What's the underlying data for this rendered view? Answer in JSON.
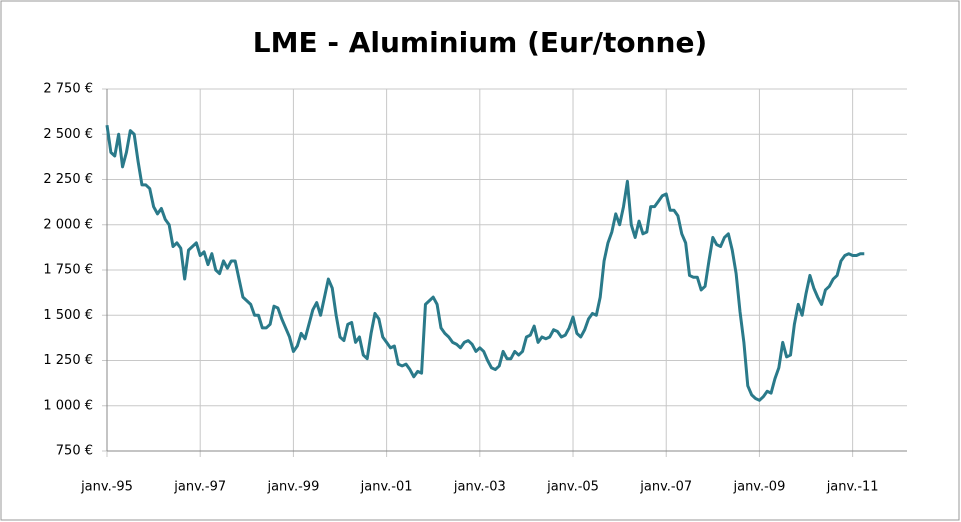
{
  "chart_data": {
    "type": "line",
    "title": "LME - Aluminium (Eur/tonne)",
    "color": "#2a7a8a",
    "grid": true,
    "ylim": [
      750,
      2750
    ],
    "yticks": [
      {
        "value": 750,
        "label": "750 €"
      },
      {
        "value": 1000,
        "label": "1 000 €"
      },
      {
        "value": 1250,
        "label": "1 250 €"
      },
      {
        "value": 1500,
        "label": "1 500 €"
      },
      {
        "value": 1750,
        "label": "1 750 €"
      },
      {
        "value": 2000,
        "label": "2 000 €"
      },
      {
        "value": 2250,
        "label": "2 250 €"
      },
      {
        "value": 2500,
        "label": "2 500 €"
      },
      {
        "value": 2750,
        "label": "2 750 €"
      }
    ],
    "xlim": [
      "1995-01",
      "2012-03"
    ],
    "xticks": [
      {
        "value": "1995-01",
        "label": "janv.-95"
      },
      {
        "value": "1997-01",
        "label": "janv.-97"
      },
      {
        "value": "1999-01",
        "label": "janv.-99"
      },
      {
        "value": "2001-01",
        "label": "janv.-01"
      },
      {
        "value": "2003-01",
        "label": "janv.-03"
      },
      {
        "value": "2005-01",
        "label": "janv.-05"
      },
      {
        "value": "2007-01",
        "label": "janv.-07"
      },
      {
        "value": "2009-01",
        "label": "janv.-09"
      },
      {
        "value": "2011-01",
        "label": "janv.-11"
      }
    ],
    "x": [
      "1995-01",
      "1995-02",
      "1995-03",
      "1995-04",
      "1995-05",
      "1995-06",
      "1995-07",
      "1995-08",
      "1995-09",
      "1995-10",
      "1995-11",
      "1995-12",
      "1996-01",
      "1996-02",
      "1996-03",
      "1996-04",
      "1996-05",
      "1996-06",
      "1996-07",
      "1996-08",
      "1996-09",
      "1996-10",
      "1996-11",
      "1996-12",
      "1997-01",
      "1997-02",
      "1997-03",
      "1997-04",
      "1997-05",
      "1997-06",
      "1997-07",
      "1997-08",
      "1997-09",
      "1997-10",
      "1997-11",
      "1997-12",
      "1998-01",
      "1998-02",
      "1998-03",
      "1998-04",
      "1998-05",
      "1998-06",
      "1998-07",
      "1998-08",
      "1998-09",
      "1998-10",
      "1998-11",
      "1998-12",
      "1999-01",
      "1999-02",
      "1999-03",
      "1999-04",
      "1999-05",
      "1999-06",
      "1999-07",
      "1999-08",
      "1999-09",
      "1999-10",
      "1999-11",
      "1999-12",
      "2000-01",
      "2000-02",
      "2000-03",
      "2000-04",
      "2000-05",
      "2000-06",
      "2000-07",
      "2000-08",
      "2000-09",
      "2000-10",
      "2000-11",
      "2000-12",
      "2001-01",
      "2001-02",
      "2001-03",
      "2001-04",
      "2001-05",
      "2001-06",
      "2001-07",
      "2001-08",
      "2001-09",
      "2001-10",
      "2001-11",
      "2001-12",
      "2002-01",
      "2002-02",
      "2002-03",
      "2002-04",
      "2002-05",
      "2002-06",
      "2002-07",
      "2002-08",
      "2002-09",
      "2002-10",
      "2002-11",
      "2002-12",
      "2003-01",
      "2003-02",
      "2003-03",
      "2003-04",
      "2003-05",
      "2003-06",
      "2003-07",
      "2003-08",
      "2003-09",
      "2003-10",
      "2003-11",
      "2003-12",
      "2004-01",
      "2004-02",
      "2004-03",
      "2004-04",
      "2004-05",
      "2004-06",
      "2004-07",
      "2004-08",
      "2004-09",
      "2004-10",
      "2004-11",
      "2004-12",
      "2005-01",
      "2005-02",
      "2005-03",
      "2005-04",
      "2005-05",
      "2005-06",
      "2005-07",
      "2005-08",
      "2005-09",
      "2005-10",
      "2005-11",
      "2005-12",
      "2006-01",
      "2006-02",
      "2006-03",
      "2006-04",
      "2006-05",
      "2006-06",
      "2006-07",
      "2006-08",
      "2006-09",
      "2006-10",
      "2006-11",
      "2006-12",
      "2007-01",
      "2007-02",
      "2007-03",
      "2007-04",
      "2007-05",
      "2007-06",
      "2007-07",
      "2007-08",
      "2007-09",
      "2007-10",
      "2007-11",
      "2007-12",
      "2008-01",
      "2008-02",
      "2008-03",
      "2008-04",
      "2008-05",
      "2008-06",
      "2008-07",
      "2008-08",
      "2008-09",
      "2008-10",
      "2008-11",
      "2008-12",
      "2009-01",
      "2009-02",
      "2009-03",
      "2009-04",
      "2009-05",
      "2009-06",
      "2009-07",
      "2009-08",
      "2009-09",
      "2009-10",
      "2009-11",
      "2009-12",
      "2010-01",
      "2010-02",
      "2010-03",
      "2010-04",
      "2010-05",
      "2010-06",
      "2010-07",
      "2010-08",
      "2010-09",
      "2010-10",
      "2010-11",
      "2010-12",
      "2011-01",
      "2011-02",
      "2011-03",
      "2011-04"
    ],
    "values": [
      2550,
      2400,
      2380,
      2500,
      2320,
      2400,
      2520,
      2500,
      2350,
      2220,
      2220,
      2200,
      2100,
      2060,
      2090,
      2030,
      2000,
      1880,
      1900,
      1870,
      1700,
      1860,
      1880,
      1900,
      1830,
      1850,
      1780,
      1840,
      1750,
      1730,
      1800,
      1760,
      1800,
      1800,
      1700,
      1600,
      1580,
      1560,
      1500,
      1500,
      1430,
      1430,
      1450,
      1550,
      1540,
      1480,
      1430,
      1380,
      1300,
      1330,
      1400,
      1370,
      1450,
      1530,
      1570,
      1500,
      1600,
      1700,
      1650,
      1500,
      1380,
      1360,
      1450,
      1460,
      1350,
      1380,
      1280,
      1260,
      1400,
      1510,
      1480,
      1380,
      1350,
      1320,
      1330,
      1230,
      1220,
      1230,
      1200,
      1160,
      1190,
      1180,
      1560,
      1580,
      1600,
      1560,
      1430,
      1400,
      1380,
      1350,
      1340,
      1320,
      1350,
      1360,
      1340,
      1300,
      1320,
      1300,
      1250,
      1210,
      1200,
      1220,
      1300,
      1260,
      1260,
      1300,
      1280,
      1300,
      1380,
      1390,
      1440,
      1350,
      1380,
      1370,
      1380,
      1420,
      1410,
      1380,
      1390,
      1430,
      1490,
      1400,
      1380,
      1420,
      1480,
      1510,
      1500,
      1600,
      1800,
      1900,
      1960,
      2060,
      2000,
      2100,
      2240,
      2000,
      1930,
      2020,
      1950,
      1960,
      2100,
      2100,
      2130,
      2160,
      2170,
      2080,
      2080,
      2050,
      1950,
      1900,
      1720,
      1710,
      1710,
      1640,
      1660,
      1800,
      1930,
      1890,
      1880,
      1930,
      1950,
      1860,
      1730,
      1520,
      1350,
      1110,
      1060,
      1040,
      1030,
      1050,
      1080,
      1070,
      1150,
      1210,
      1350,
      1270,
      1280,
      1450,
      1560,
      1500,
      1620,
      1720,
      1650,
      1600,
      1560,
      1640,
      1660,
      1700,
      1720,
      1800,
      1830,
      1840,
      1830,
      1830,
      1840,
      1840
    ]
  }
}
